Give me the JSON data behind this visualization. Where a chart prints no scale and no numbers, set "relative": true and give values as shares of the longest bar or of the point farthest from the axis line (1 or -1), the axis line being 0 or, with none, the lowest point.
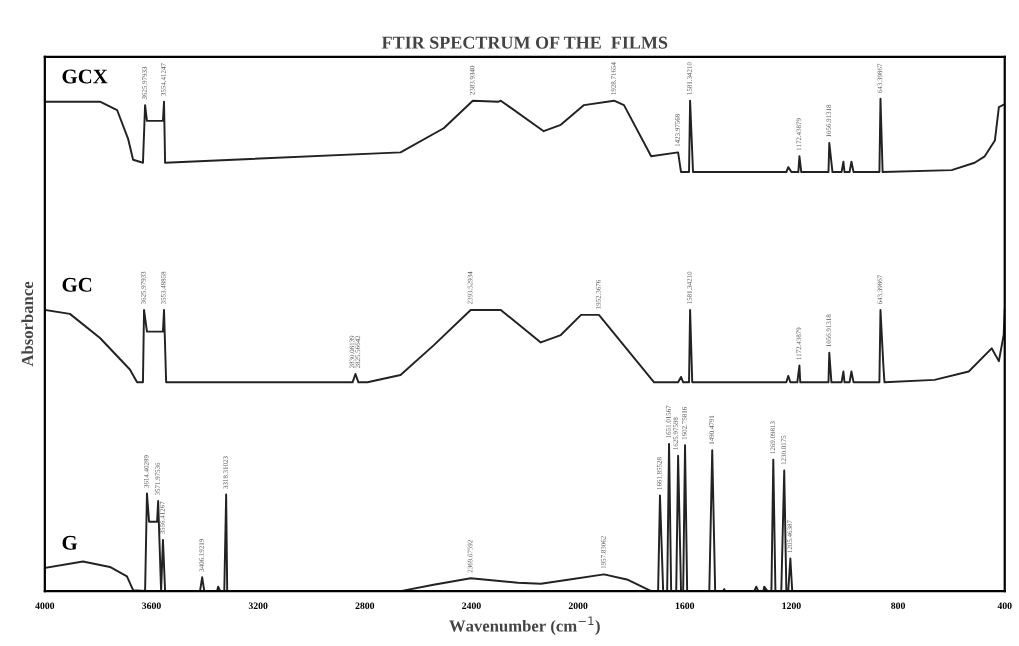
{
  "chart_data": {
    "type": "line",
    "title": "FTIR SPECTRUM OF THE  FILMS",
    "xlabel": "Wavenumber (cm$^{−1}$)",
    "ylabel": "Absorbance",
    "relative": true,
    "xlim": [
      4000,
      400
    ],
    "xticks": [
      4000,
      3600,
      3200,
      2800,
      2400,
      2000,
      1600,
      1200,
      800,
      400
    ],
    "grid": false,
    "legend": false,
    "marker": "none",
    "line_style": "solid",
    "series": [
      {
        "name": "GCX",
        "color": "#222222",
        "x": [
          4000,
          3793,
          3729,
          3688,
          3669,
          3632,
          3624,
          3617,
          3557,
          3553,
          3549,
          2666,
          2504,
          2395,
          2298,
          2290,
          2129,
          2065,
          1978,
          1865,
          1828,
          1726,
          1625,
          1614,
          1584,
          1580,
          1569,
          1219,
          1212,
          1200,
          1174,
          1170,
          1163,
          1061,
          1058,
          1046,
          1012,
          1005,
          1001,
          982,
          975,
          967,
          870,
          866,
          858,
          599,
          513,
          475,
          437,
          422,
          400
        ],
        "values": [
          0.994,
          0.994,
          0.977,
          0.919,
          0.876,
          0.87,
          0.987,
          0.955,
          0.955,
          0.994,
          0.87,
          0.891,
          0.94,
          0.996,
          0.994,
          0.996,
          0.934,
          0.947,
          0.987,
          0.996,
          0.987,
          0.883,
          0.891,
          0.851,
          0.851,
          0.996,
          0.851,
          0.851,
          0.861,
          0.851,
          0.851,
          0.883,
          0.851,
          0.851,
          0.91,
          0.851,
          0.851,
          0.872,
          0.851,
          0.851,
          0.872,
          0.851,
          0.851,
          1,
          0.851,
          0.855,
          0.87,
          0.883,
          0.915,
          0.983,
          0.989
        ]
      },
      {
        "name": "GC",
        "color": "#222222",
        "x": [
          4000,
          3906,
          3793,
          3681,
          3654,
          3632,
          3628,
          3617,
          3557,
          3553,
          3545,
          2846,
          2835,
          2824,
          2790,
          2666,
          2542,
          2403,
          2290,
          2140,
          2065,
          1989,
          1922,
          1715,
          1625,
          1614,
          1606,
          1584,
          1580,
          1572,
          1219,
          1212,
          1204,
          1178,
          1170,
          1167,
          1061,
          1058,
          1050,
          1012,
          1005,
          1001,
          982,
          975,
          967,
          870,
          866,
          855,
          851,
          663,
          535,
          449,
          422,
          404,
          400
        ],
        "values": [
          0.571,
          0.563,
          0.514,
          0.45,
          0.424,
          0.424,
          0.571,
          0.527,
          0.527,
          0.571,
          0.424,
          0.424,
          0.441,
          0.424,
          0.424,
          0.439,
          0.499,
          0.571,
          0.571,
          0.505,
          0.52,
          0.561,
          0.561,
          0.424,
          0.424,
          0.435,
          0.424,
          0.424,
          0.571,
          0.424,
          0.424,
          0.437,
          0.424,
          0.424,
          0.458,
          0.424,
          0.424,
          0.484,
          0.424,
          0.424,
          0.446,
          0.424,
          0.424,
          0.446,
          0.424,
          0.424,
          0.571,
          0.456,
          0.424,
          0.429,
          0.446,
          0.493,
          0.467,
          0.52,
          0.571
        ]
      },
      {
        "name": "G",
        "color": "#222222",
        "x": [
          4000,
          3857,
          3756,
          3692,
          3669,
          3624,
          3617,
          3609,
          3579,
          3575,
          3564,
          3557,
          3549,
          3418,
          3410,
          3402,
          3354,
          3350,
          3342,
          3327,
          3320,
          3316,
          2666,
          2542,
          2403,
          2226,
          2140,
          2038,
          1903,
          1813,
          1726,
          1700,
          1693,
          1681,
          1666,
          1659,
          1651,
          1632,
          1625,
          1614,
          1606,
          1599,
          1591,
          1508,
          1497,
          1486,
          1456,
          1452,
          1448,
          1339,
          1332,
          1324,
          1305,
          1302,
          1290,
          1275,
          1268,
          1260,
          1238,
          1227,
          1219,
          1212,
          1204,
          1197,
          400
        ],
        "values": [
          0.047,
          0.06,
          0.049,
          0.03,
          0.002,
          0,
          0.198,
          0.141,
          0.141,
          0.183,
          0,
          0.104,
          0,
          0,
          0.028,
          0,
          0,
          0.009,
          0,
          0,
          0.196,
          0,
          0,
          0.013,
          0.026,
          0.017,
          0.015,
          0.023,
          0.034,
          0.023,
          0,
          0,
          0.194,
          0,
          0,
          0.299,
          0,
          0,
          0.275,
          0,
          0,
          0.296,
          0,
          0,
          0.286,
          0,
          0,
          0.004,
          0,
          0,
          0.009,
          0,
          0,
          0.009,
          0,
          0,
          0.267,
          0,
          0,
          0.245,
          0,
          0,
          0.066,
          0,
          0
        ]
      }
    ],
    "annotations": [
      {
        "text": "3625.97933",
        "x": 3624,
        "y": 0.987
      },
      {
        "text": "3554.41247",
        "x": 3553,
        "y": 0.994
      },
      {
        "text": "2383.9340",
        "x": 2395,
        "y": 0.996
      },
      {
        "text": "1928.71654",
        "x": 1865,
        "y": 0.996
      },
      {
        "text": "1423.97568",
        "x": 1625,
        "y": 0.891
      },
      {
        "text": "1581.34210",
        "x": 1580,
        "y": 0.996
      },
      {
        "text": "1172.43879",
        "x": 1170,
        "y": 0.883
      },
      {
        "text": "1056.91318",
        "x": 1058,
        "y": 0.91
      },
      {
        "text": "643.39867",
        "x": 866,
        "y": 1
      },
      {
        "text": "3625.97933",
        "x": 3628,
        "y": 0.571
      },
      {
        "text": "3553.48858",
        "x": 3553,
        "y": 0.571
      },
      {
        "text": "2830.08139",
        "x": 2846,
        "y": 0.441
      },
      {
        "text": "2825.56642",
        "x": 2824,
        "y": 0.441
      },
      {
        "text": "2393.52934",
        "x": 2403,
        "y": 0.571
      },
      {
        "text": "1952.3676",
        "x": 1922,
        "y": 0.561
      },
      {
        "text": "1581.34210",
        "x": 1580,
        "y": 0.571
      },
      {
        "text": "1172.43879",
        "x": 1170,
        "y": 0.458
      },
      {
        "text": "1056.91318",
        "x": 1058,
        "y": 0.484
      },
      {
        "text": "643.39867",
        "x": 866,
        "y": 0.571
      },
      {
        "text": "3614.40289",
        "x": 3617,
        "y": 0.198
      },
      {
        "text": "3571.97536",
        "x": 3575,
        "y": 0.183
      },
      {
        "text": "3556.41267",
        "x": 3557,
        "y": 0.104
      },
      {
        "text": "3406.19219",
        "x": 3410,
        "y": 0.028
      },
      {
        "text": "3318.31023",
        "x": 3320,
        "y": 0.196
      },
      {
        "text": "2369.67592",
        "x": 2403,
        "y": 0.026
      },
      {
        "text": "1957.83062",
        "x": 1903,
        "y": 0.034
      },
      {
        "text": "1661.85528",
        "x": 1693,
        "y": 0.194
      },
      {
        "text": "1651.01567",
        "x": 1659,
        "y": 0.299
      },
      {
        "text": "1625.97598",
        "x": 1632,
        "y": 0.275
      },
      {
        "text": "1602.75816",
        "x": 1599,
        "y": 0.296
      },
      {
        "text": "1490.4791",
        "x": 1497,
        "y": 0.286
      },
      {
        "text": "1269.09813",
        "x": 1268,
        "y": 0.267
      },
      {
        "text": "1230.0175",
        "x": 1227,
        "y": 0.245
      },
      {
        "text": "1205.46387",
        "x": 1204,
        "y": 0.066
      }
    ]
  }
}
